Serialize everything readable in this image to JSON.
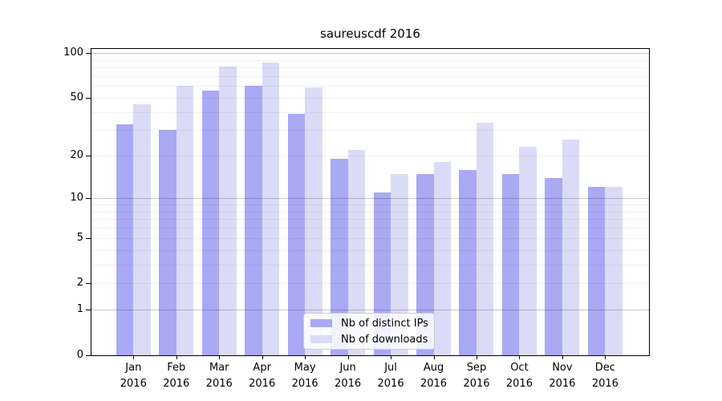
{
  "chart_data": {
    "type": "bar",
    "title": "saureuscdf 2016",
    "categories": [
      [
        "Jan",
        "2016"
      ],
      [
        "Feb",
        "2016"
      ],
      [
        "Mar",
        "2016"
      ],
      [
        "Apr",
        "2016"
      ],
      [
        "May",
        "2016"
      ],
      [
        "Jun",
        "2016"
      ],
      [
        "Jul",
        "2016"
      ],
      [
        "Aug",
        "2016"
      ],
      [
        "Sep",
        "2016"
      ],
      [
        "Oct",
        "2016"
      ],
      [
        "Nov",
        "2016"
      ],
      [
        "Dec",
        "2016"
      ]
    ],
    "series": [
      {
        "name": "Nb of distinct IPs",
        "color": "#a9a9f4",
        "values": [
          33,
          30,
          56,
          60,
          39,
          19,
          11,
          15,
          16,
          15,
          14,
          12
        ]
      },
      {
        "name": "Nb of downloads",
        "color": "#dbdbf8",
        "values": [
          45,
          60,
          81,
          86,
          59,
          22,
          15,
          18,
          34,
          23,
          26,
          12
        ]
      }
    ],
    "xlabel": "",
    "ylabel": "",
    "y_axis": {
      "scale": "log1p",
      "ticks": [
        100,
        50,
        20,
        10,
        5,
        2,
        1,
        0
      ],
      "ylim": [
        0,
        106
      ],
      "major_gridlines": [
        1,
        10,
        100
      ],
      "minor_gridlines": [
        2,
        3,
        4,
        5,
        6,
        7,
        8,
        9,
        20,
        30,
        40,
        50,
        60,
        70,
        80,
        90
      ],
      "grid": true
    },
    "legend": {
      "position": "lower center"
    }
  },
  "colors": {
    "bar_distinct_ips": "#a9a9f4",
    "bar_downloads": "#dbdbf8",
    "spine": "#000000",
    "grid_minor": "#ededed",
    "grid_major": "#c3c3c3",
    "legend_border": "#cccccc"
  }
}
